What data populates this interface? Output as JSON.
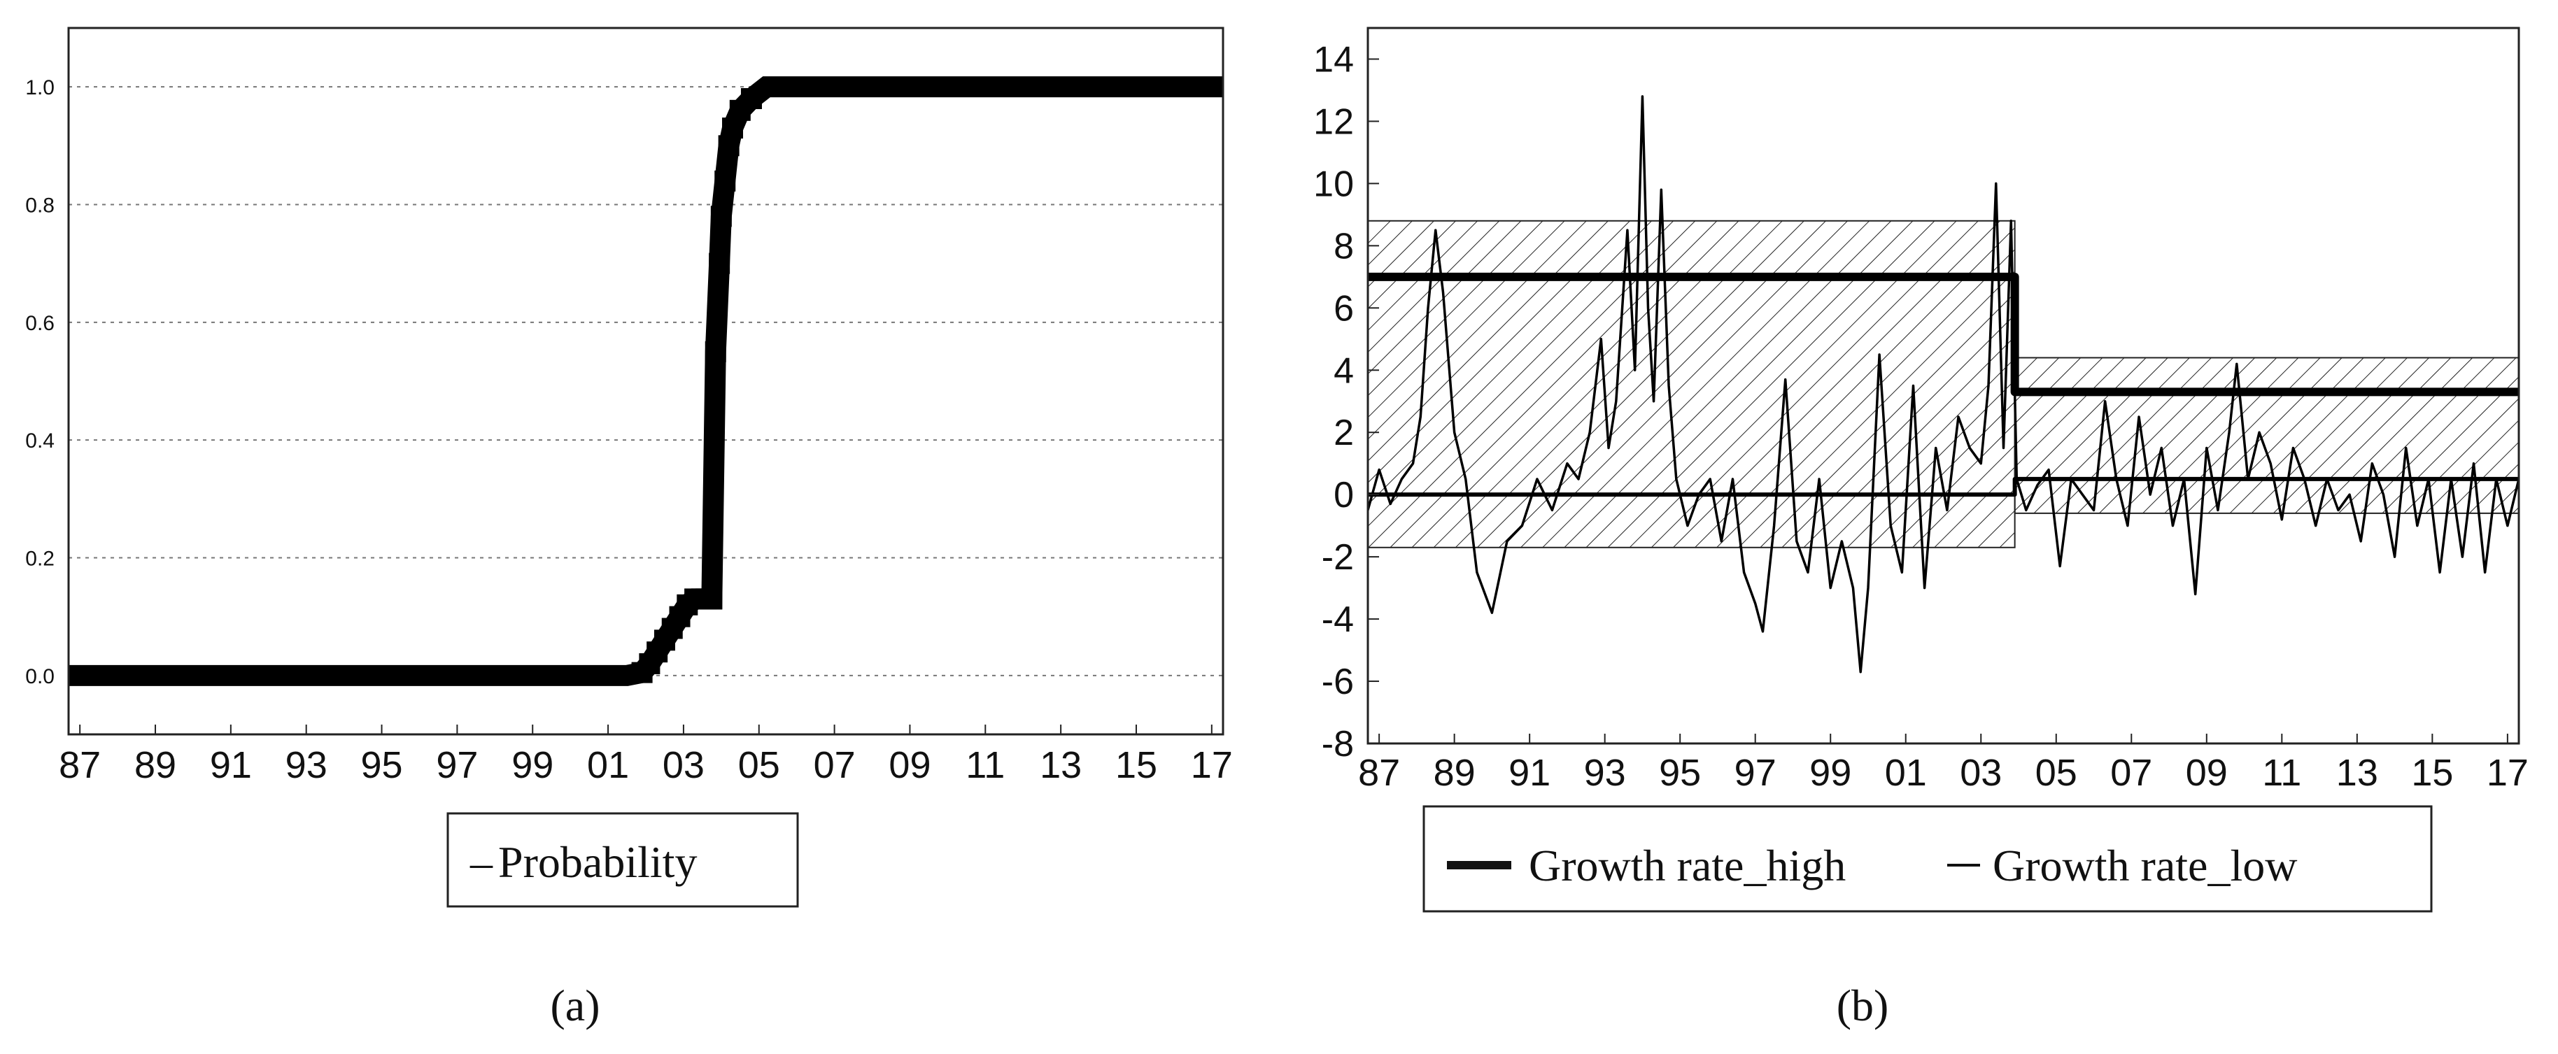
{
  "panels": {
    "a": {
      "caption": "(a)"
    },
    "b": {
      "caption": "(b)"
    }
  },
  "chart_data": [
    {
      "type": "line",
      "panel": "a",
      "x_tick_labels": [
        "87",
        "89",
        "91",
        "93",
        "95",
        "97",
        "99",
        "01",
        "03",
        "05",
        "07",
        "09",
        "11",
        "13",
        "15",
        "17"
      ],
      "x_tick_years": [
        1987,
        1989,
        1991,
        1993,
        1995,
        1997,
        1999,
        2001,
        2003,
        2005,
        2007,
        2009,
        2011,
        2013,
        2015,
        2017
      ],
      "y_tick_labels": [
        "0.0",
        "0.2",
        "0.4",
        "0.6",
        "0.8",
        "1.0"
      ],
      "xlim": [
        1986.7,
        2017.3
      ],
      "ylim": [
        -0.1,
        1.1
      ],
      "grid": "horizontal dotted",
      "legend": {
        "position": "bottom-center",
        "entries": [
          "Probability"
        ],
        "marker": "–"
      },
      "series": [
        {
          "name": "Probability",
          "x": [
            1986.7,
            1990,
            1995,
            2000,
            2001.5,
            2001.9,
            2002.1,
            2002.3,
            2002.5,
            2002.7,
            2002.9,
            2003.1,
            2003.3,
            2003.6,
            2003.75,
            2003.85,
            2003.95,
            2004.0,
            2004.1,
            2004.2,
            2004.3,
            2004.5,
            2004.8,
            2005.2,
            2006,
            2010,
            2017.3
          ],
          "y": [
            0.0,
            0.0,
            0.0,
            0.0,
            0.0,
            0.005,
            0.02,
            0.04,
            0.06,
            0.08,
            0.1,
            0.12,
            0.13,
            0.13,
            0.13,
            0.55,
            0.7,
            0.78,
            0.84,
            0.9,
            0.93,
            0.96,
            0.98,
            1.0,
            1.0,
            1.0,
            1.0
          ]
        }
      ]
    },
    {
      "type": "line",
      "panel": "b",
      "x_tick_labels": [
        "87",
        "89",
        "91",
        "93",
        "95",
        "97",
        "99",
        "01",
        "03",
        "05",
        "07",
        "09",
        "11",
        "13",
        "15",
        "17"
      ],
      "x_tick_years": [
        1987,
        1989,
        1991,
        1993,
        1995,
        1997,
        1999,
        2001,
        2003,
        2005,
        2007,
        2009,
        2011,
        2013,
        2015,
        2017
      ],
      "y_tick_labels": [
        "-8",
        "-6",
        "-4",
        "-2",
        "0",
        "2",
        "4",
        "6",
        "8",
        "10",
        "12",
        "14"
      ],
      "y_tick_values": [
        -8,
        -6,
        -4,
        -2,
        0,
        2,
        4,
        6,
        8,
        10,
        12,
        14
      ],
      "xlim": [
        1986.7,
        2017.3
      ],
      "ylim": [
        -8,
        15
      ],
      "grid": "none",
      "legend": {
        "position": "bottom-center",
        "entries": [
          "Growth rate_high",
          "Growth rate_low"
        ]
      },
      "bands": [
        {
          "x_start": 1986.7,
          "x_end": 2003.9,
          "y_low": -1.7,
          "y_high": 8.8
        },
        {
          "x_start": 2003.9,
          "x_end": 2017.3,
          "y_low": -0.6,
          "y_high": 4.4
        }
      ],
      "series": [
        {
          "name": "Growth rate_high",
          "x": [
            1986.7,
            2003.9,
            2003.9,
            2017.3
          ],
          "y": [
            7.0,
            7.0,
            3.3,
            3.3
          ]
        },
        {
          "name": "Growth rate_low",
          "x": [
            1986.7,
            2003.9,
            2003.9,
            2017.3
          ],
          "y": [
            0.0,
            0.0,
            0.5,
            0.5
          ]
        },
        {
          "name": "",
          "x": [
            1986.7,
            1987.0,
            1987.3,
            1987.6,
            1987.9,
            1988.1,
            1988.3,
            1988.5,
            1988.7,
            1989.0,
            1989.3,
            1989.6,
            1990.0,
            1990.4,
            1990.8,
            1991.2,
            1991.6,
            1992.0,
            1992.3,
            1992.6,
            1992.9,
            1993.1,
            1993.3,
            1993.6,
            1993.8,
            1994.0,
            1994.15,
            1994.3,
            1994.5,
            1994.7,
            1994.9,
            1995.2,
            1995.5,
            1995.8,
            1996.1,
            1996.4,
            1996.7,
            1997.0,
            1997.2,
            1997.5,
            1997.8,
            1998.1,
            1998.4,
            1998.7,
            1999.0,
            1999.3,
            1999.6,
            1999.8,
            2000.0,
            2000.3,
            2000.6,
            2000.9,
            2001.2,
            2001.5,
            2001.8,
            2002.1,
            2002.4,
            2002.7,
            2003.0,
            2003.2,
            2003.4,
            2003.6,
            2003.8,
            2003.95,
            2004.2,
            2004.5,
            2004.8,
            2005.1,
            2005.4,
            2005.7,
            2006.0,
            2006.3,
            2006.6,
            2006.9,
            2007.2,
            2007.5,
            2007.8,
            2008.1,
            2008.4,
            2008.7,
            2009.0,
            2009.3,
            2009.6,
            2009.8,
            2010.1,
            2010.4,
            2010.7,
            2011.0,
            2011.3,
            2011.6,
            2011.9,
            2012.2,
            2012.5,
            2012.8,
            2013.1,
            2013.4,
            2013.7,
            2014.0,
            2014.3,
            2014.6,
            2014.9,
            2015.2,
            2015.5,
            2015.8,
            2016.1,
            2016.4,
            2016.7,
            2017.0,
            2017.3
          ],
          "y": [
            -0.5,
            0.8,
            -0.3,
            0.5,
            1.0,
            2.5,
            6.0,
            8.5,
            6.5,
            2.0,
            0.5,
            -2.5,
            -3.8,
            -1.5,
            -1.0,
            0.5,
            -0.5,
            1.0,
            0.5,
            2.0,
            5.0,
            1.5,
            3.0,
            8.5,
            4.0,
            12.8,
            6.0,
            3.0,
            9.8,
            3.5,
            0.5,
            -1.0,
            0.0,
            0.5,
            -1.5,
            0.5,
            -2.5,
            -3.5,
            -4.4,
            -1.0,
            3.7,
            -1.5,
            -2.5,
            0.5,
            -3.0,
            -1.5,
            -3.0,
            -5.7,
            -3.0,
            4.5,
            -1.0,
            -2.5,
            3.5,
            -3.0,
            1.5,
            -0.5,
            2.5,
            1.5,
            1.0,
            3.5,
            10.0,
            1.5,
            8.8,
            0.5,
            -0.5,
            0.3,
            0.8,
            -2.3,
            0.5,
            0.0,
            -0.5,
            3.0,
            0.5,
            -1.0,
            2.5,
            0.0,
            1.5,
            -1.0,
            0.5,
            -3.2,
            1.5,
            -0.5,
            2.0,
            4.2,
            0.5,
            2.0,
            1.0,
            -0.8,
            1.5,
            0.5,
            -1.0,
            0.5,
            -0.5,
            0.0,
            -1.5,
            1.0,
            0.0,
            -2.0,
            1.5,
            -1.0,
            0.5,
            -2.5,
            0.5,
            -2.0,
            1.0,
            -2.5,
            0.5,
            -1.0,
            0.5
          ]
        }
      ]
    }
  ]
}
